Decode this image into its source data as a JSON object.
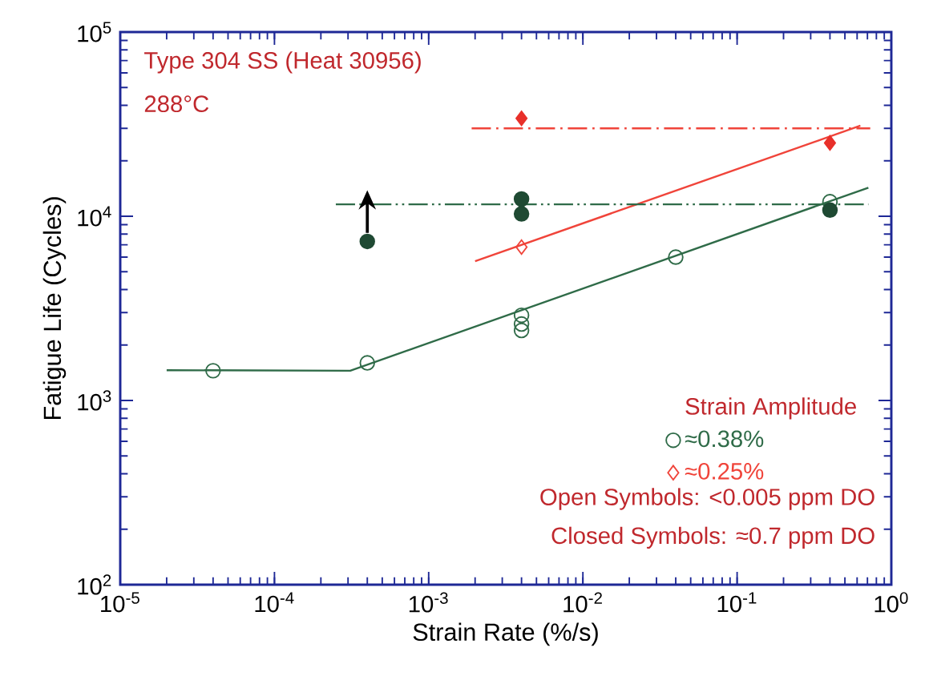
{
  "chart_data": {
    "type": "scatter",
    "log": "xy",
    "xlabel": "Strain Rate (%/s)",
    "ylabel": "Fatigue Life (Cycles)",
    "xlim": [
      1e-05,
      1
    ],
    "ylim": [
      100,
      100000
    ],
    "xticks": [
      {
        "value": 1e-05,
        "label": "10$^{-5}$"
      },
      {
        "value": 0.0001,
        "label": "10$^{-4}$"
      },
      {
        "value": 0.001,
        "label": "10$^{-3}$"
      },
      {
        "value": 0.01,
        "label": "10$^{-2}$"
      },
      {
        "value": 0.1,
        "label": "10$^{-1}$"
      },
      {
        "value": 1,
        "label": "10$^{0}$"
      }
    ],
    "yticks": [
      {
        "value": 100,
        "label": "10$^{2}$"
      },
      {
        "value": 1000,
        "label": "10$^{3}$"
      },
      {
        "value": 10000,
        "label": "10$^{4}$"
      },
      {
        "value": 100000,
        "label": "10$^{5}$"
      }
    ],
    "legend": "bottom right",
    "legend_title": "Strain Amplitude",
    "grid": false,
    "annotations": [
      "Type 304 SS (Heat 30956)",
      "288°C",
      "Open Symbols: <0.005 ppm DO",
      "Closed Symbols: ≈0.7 ppm DO"
    ],
    "series": [
      {
        "type": "line",
        "color": "#2f6b48",
        "line_style": "solid",
        "x": [
          2e-05,
          0.00031,
          0.71
        ],
        "values": [
          1460,
          1450,
          14300
        ]
      },
      {
        "type": "line",
        "color": "#f0443a",
        "line_style": "solid",
        "x": [
          0.002,
          0.63
        ],
        "values": [
          5700,
          31000
        ]
      },
      {
        "type": "line",
        "color": "#2f6b48",
        "line_style": "dashdotdotted",
        "x": [
          0.00025,
          0.71
        ],
        "values": [
          11600,
          11600
        ]
      },
      {
        "type": "line",
        "color": "#f0443a",
        "line_style": "dashdotted",
        "x": [
          0.0019,
          0.73
        ],
        "values": [
          30000,
          30000
        ]
      },
      {
        "name": "≈0.38%",
        "color": "#2f6b48",
        "marker": "circle",
        "x": [
          4e-05,
          0.0004,
          0.004,
          0.004,
          0.004,
          0.04,
          0.4
        ],
        "values": [
          1450,
          1600,
          2900,
          2600,
          2400,
          6000,
          12000
        ]
      },
      {
        "name": "≈0.25%",
        "color": "#f0443a",
        "marker": "diamond",
        "x": [
          0.004
        ],
        "values": [
          6800
        ]
      },
      {
        "color": "#1f4a33",
        "marker": "circle",
        "x": [
          0.0004,
          0.004,
          0.004,
          0.4
        ],
        "values": [
          7300,
          12400,
          10300,
          10800
        ]
      },
      {
        "color": "#e8302a",
        "marker": "diamond",
        "x": [
          0.004,
          0.4
        ],
        "values": [
          34000,
          25000
        ]
      }
    ]
  }
}
